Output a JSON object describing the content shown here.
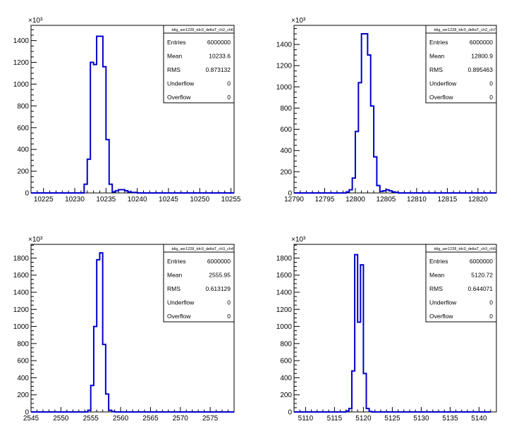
{
  "colors": {
    "histogram": "#0000cc",
    "frame": "#000000",
    "background": "#ffffff"
  },
  "stats_labels": [
    "Entries",
    "Mean",
    "RMS",
    "Underflow",
    "Overflow"
  ],
  "chart_data": [
    {
      "type": "histogram",
      "title": "tdig_ser1228_tdc0_deltaT_ch2_ch6",
      "y_exponent_label": "×10³",
      "xlim": [
        10223.0,
        10255.5
      ],
      "ylim": [
        0,
        1540
      ],
      "xticks": [
        10225,
        10230,
        10235,
        10240,
        10245,
        10250,
        10255
      ],
      "xtick_labels": [
        "10225",
        "10230",
        "10235",
        "10240",
        "10245",
        "10250",
        "10255"
      ],
      "yticks": [
        0,
        200,
        400,
        600,
        800,
        1000,
        1200,
        1400
      ],
      "ytick_labels": [
        "0",
        "200",
        "400",
        "600",
        "800",
        "1000",
        "1200",
        "1400"
      ],
      "bin_start": 10222.5,
      "bin_width": 0.5,
      "counts": [
        0,
        0,
        0,
        0,
        0,
        0,
        0,
        0,
        0,
        0,
        0,
        0,
        0,
        0,
        0,
        0,
        0,
        0,
        80,
        310,
        1200,
        1180,
        1440,
        1440,
        1160,
        490,
        80,
        10,
        20,
        30,
        30,
        20,
        10,
        5,
        5,
        0,
        0,
        0,
        0,
        0,
        0,
        0,
        0,
        0,
        0,
        0,
        0,
        0,
        0,
        0,
        0,
        0,
        0,
        0,
        0,
        0,
        0,
        0,
        0,
        0,
        0,
        0,
        0,
        0,
        0,
        0
      ],
      "stats": {
        "Entries": "6000000",
        "Mean": "10233.6",
        "RMS": "0.873132",
        "Underflow": "0",
        "Overflow": "0"
      }
    },
    {
      "type": "histogram",
      "title": "tdig_ser1228_tdc0_deltaT_ch2_ch7",
      "y_exponent_label": "×10³",
      "xlim": [
        12790,
        12823
      ],
      "ylim": [
        0,
        1580
      ],
      "xticks": [
        12790,
        12795,
        12800,
        12805,
        12810,
        12815,
        12820
      ],
      "xtick_labels": [
        "12790",
        "12795",
        "12800",
        "12805",
        "12810",
        "12815",
        "12820"
      ],
      "yticks": [
        0,
        200,
        400,
        600,
        800,
        1000,
        1200,
        1400
      ],
      "ytick_labels": [
        "0",
        "200",
        "400",
        "600",
        "800",
        "1000",
        "1200",
        "1400"
      ],
      "bin_start": 12790,
      "bin_width": 0.5,
      "counts": [
        0,
        0,
        0,
        0,
        0,
        0,
        0,
        0,
        0,
        0,
        0,
        0,
        0,
        0,
        0,
        0,
        0,
        10,
        30,
        140,
        580,
        1040,
        1500,
        1500,
        1300,
        820,
        340,
        70,
        15,
        20,
        30,
        20,
        10,
        5,
        0,
        0,
        0,
        0,
        0,
        0,
        0,
        0,
        0,
        0,
        0,
        0,
        0,
        0,
        0,
        0,
        0,
        0,
        0,
        0,
        0,
        0,
        0,
        0,
        0,
        0,
        0,
        0,
        0,
        0,
        0,
        0
      ],
      "stats": {
        "Entries": "6000000",
        "Mean": "12800.9",
        "RMS": "0.895463",
        "Underflow": "0",
        "Overflow": "0"
      }
    },
    {
      "type": "histogram",
      "title": "tdig_ser1228_tdc0_deltaT_ch3_ch4",
      "y_exponent_label": "×10³",
      "xlim": [
        2545,
        2579
      ],
      "ylim": [
        0,
        1960
      ],
      "xticks": [
        2545,
        2550,
        2555,
        2560,
        2565,
        2570,
        2575
      ],
      "xtick_labels": [
        "2545",
        "2550",
        "2555",
        "2560",
        "2565",
        "2570",
        "2575"
      ],
      "yticks": [
        0,
        200,
        400,
        600,
        800,
        1000,
        1200,
        1400,
        1600,
        1800
      ],
      "ytick_labels": [
        "0",
        "200",
        "400",
        "600",
        "800",
        "1000",
        "1200",
        "1400",
        "1600",
        "1800"
      ],
      "bin_start": 2545,
      "bin_width": 0.5,
      "counts": [
        0,
        0,
        0,
        0,
        0,
        0,
        0,
        0,
        0,
        0,
        0,
        0,
        0,
        0,
        0,
        0,
        0,
        0,
        0,
        20,
        310,
        1000,
        1780,
        1860,
        790,
        210,
        20,
        5,
        0,
        0,
        0,
        0,
        0,
        0,
        0,
        0,
        0,
        0,
        0,
        0,
        0,
        0,
        0,
        0,
        0,
        0,
        0,
        0,
        0,
        0,
        0,
        0,
        0,
        0,
        0,
        0,
        0,
        0,
        0,
        0,
        0,
        0,
        0,
        0,
        0,
        0,
        0,
        0
      ],
      "stats": {
        "Entries": "6000000",
        "Mean": "2555.95",
        "RMS": "0.613129",
        "Underflow": "0",
        "Overflow": "0"
      }
    },
    {
      "type": "histogram",
      "title": "tdig_ser1228_tdc0_deltaT_ch3_ch5",
      "y_exponent_label": "×10³",
      "xlim": [
        5108,
        5143
      ],
      "ylim": [
        0,
        1960
      ],
      "xticks": [
        5110,
        5115,
        5120,
        5125,
        5130,
        5135,
        5140
      ],
      "xtick_labels": [
        "5110",
        "5115",
        "5120",
        "5125",
        "5130",
        "5135",
        "5140"
      ],
      "yticks": [
        0,
        200,
        400,
        600,
        800,
        1000,
        1200,
        1400,
        1600,
        1800
      ],
      "ytick_labels": [
        "0",
        "200",
        "400",
        "600",
        "800",
        "1000",
        "1200",
        "1400",
        "1600",
        "1800"
      ],
      "bin_start": 5108,
      "bin_width": 0.5,
      "counts": [
        0,
        0,
        0,
        0,
        0,
        0,
        0,
        0,
        0,
        0,
        0,
        0,
        0,
        0,
        0,
        0,
        0,
        0,
        10,
        40,
        480,
        1840,
        1050,
        1720,
        450,
        40,
        5,
        0,
        0,
        0,
        0,
        0,
        0,
        0,
        0,
        0,
        0,
        0,
        0,
        0,
        0,
        0,
        0,
        0,
        0,
        0,
        0,
        0,
        0,
        0,
        0,
        0,
        0,
        0,
        0,
        0,
        0,
        0,
        0,
        0,
        0,
        0,
        0,
        0,
        0,
        0,
        0,
        0
      ],
      "stats": {
        "Entries": "6000000",
        "Mean": "5120.72",
        "RMS": "0.644071",
        "Underflow": "0",
        "Overflow": "0"
      }
    }
  ]
}
